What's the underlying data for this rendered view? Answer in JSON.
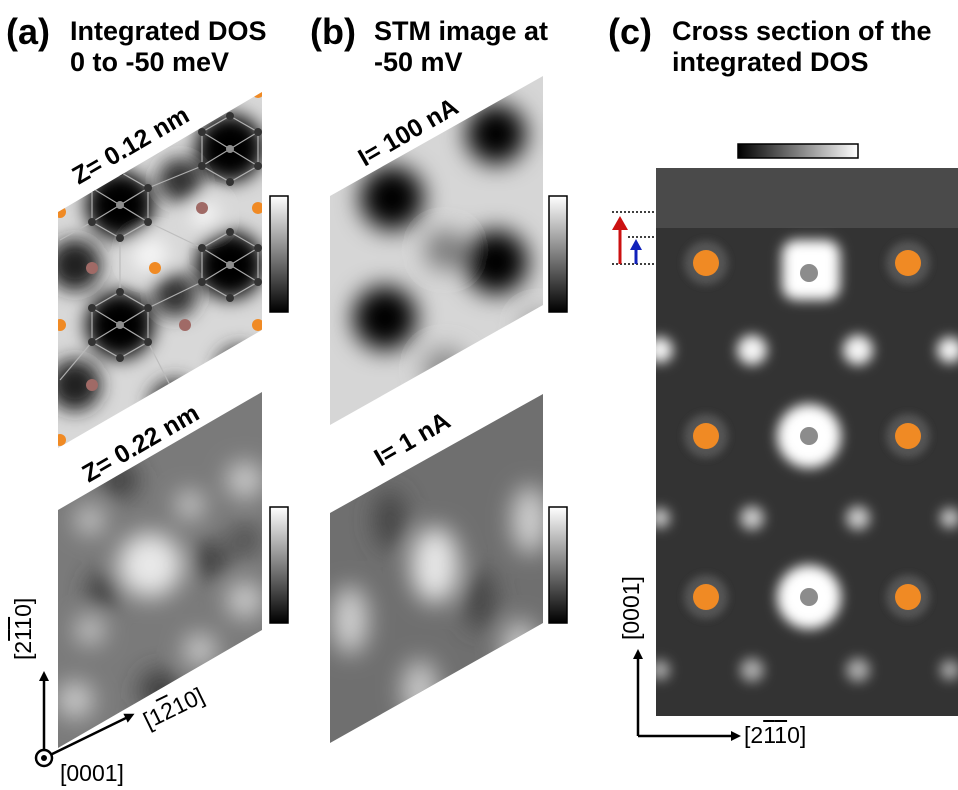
{
  "panels": {
    "a": {
      "letter": "(a)",
      "title_line1": "Integrated DOS",
      "title_line2": "0 to -50 meV",
      "top_label": "Z= 0.12 nm",
      "bottom_label": "Z= 0.22 nm"
    },
    "b": {
      "letter": "(b)",
      "title_line1": "STM image at",
      "title_line2": "-50 mV",
      "top_label": "I= 100 nA",
      "bottom_label": "I= 1 nA"
    },
    "c": {
      "letter": "(c)",
      "title_line1": "Cross section of the",
      "title_line2": "integrated DOS"
    }
  },
  "axes": {
    "a_vertical_prefix": "[2",
    "a_vertical_bar1": "1",
    "a_vertical_bar2": "1",
    "a_vertical_suffix": "0]",
    "a_diagonal_prefix": "[1",
    "a_diagonal_bar": "2",
    "a_diagonal_suffix": "10]",
    "a_out_of_plane": "[0001]",
    "c_vertical": "[0001]",
    "c_horizontal_prefix": "[2",
    "c_horizontal_bar1": "1",
    "c_horizontal_bar2": "1",
    "c_horizontal_suffix": "0]"
  },
  "colors": {
    "orange_atom": "#f08a24",
    "gray_atom": "#8c8c8c",
    "red_arrow": "#cc1111",
    "blue_arrow": "#1122bb",
    "brown_atom": "#a06a66"
  }
}
